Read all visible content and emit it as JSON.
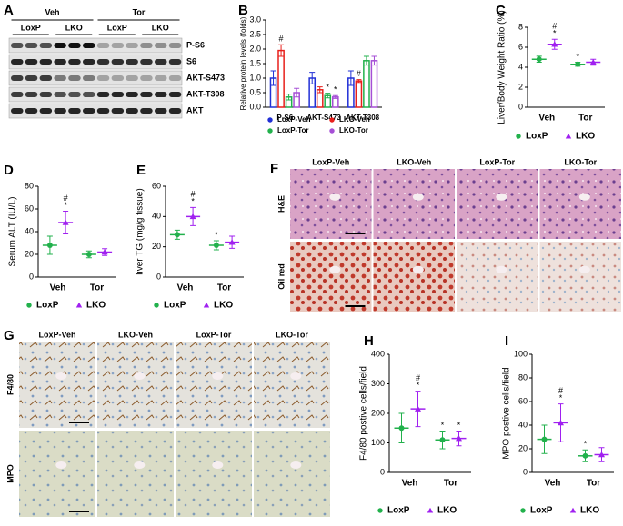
{
  "panel_labels": [
    "A",
    "B",
    "C",
    "D",
    "E",
    "F",
    "G",
    "H",
    "I"
  ],
  "blot": {
    "groups": [
      "Veh",
      "Tor"
    ],
    "genotypes": [
      "LoxP",
      "LKO",
      "LoxP",
      "LKO"
    ],
    "bands": [
      "P-S6",
      "S6",
      "AKT-S473",
      "AKT-T308",
      "AKT"
    ]
  },
  "histology_F": {
    "columns": [
      "LoxP-Veh",
      "LKO-Veh",
      "LoxP-Tor",
      "LKO-Tor"
    ],
    "rows": [
      "H&E",
      "Oil red"
    ]
  },
  "histology_G": {
    "columns": [
      "LoxP-Veh",
      "LKO-Veh",
      "LoxP-Tor",
      "LKO-Tor"
    ],
    "rows": [
      "F4/80",
      "MPO"
    ]
  },
  "chart_data": [
    {
      "type": "bar",
      "ylabel": "Relative protein levels (folds)",
      "categories": [
        "P-S6",
        "AKT-S473",
        "AKT-T308"
      ],
      "ylim": [
        0,
        3
      ],
      "yticks": [
        {
          "value": 0,
          "label": "0.0"
        },
        {
          "value": 0.5,
          "label": "0.5"
        },
        {
          "value": 1,
          "label": "1.0"
        },
        {
          "value": 1.5,
          "label": "1.5"
        },
        {
          "value": 2,
          "label": "2.0"
        },
        {
          "value": 2.5,
          "label": "2.5"
        },
        {
          "value": 3,
          "label": "3.0"
        }
      ],
      "series": [
        {
          "name": "LoxP-Veh",
          "color": "#2130d6",
          "marker": "circle",
          "values": [
            1.0,
            1.0,
            1.0
          ],
          "errors": [
            0.25,
            0.2,
            0.25
          ],
          "annotations": [
            null,
            null,
            null
          ]
        },
        {
          "name": "LKO-Veh",
          "color": "#e8201c",
          "marker": "circle",
          "values": [
            1.95,
            0.6,
            0.9
          ],
          "errors": [
            0.2,
            0.1,
            0.05
          ],
          "annotations": [
            [
              "#"
            ],
            null,
            [
              "#"
            ]
          ]
        },
        {
          "name": "LoxP-Tor",
          "color": "#22b14c",
          "marker": "circle",
          "values": [
            0.35,
            0.4,
            1.6
          ],
          "errors": [
            0.1,
            0.08,
            0.15
          ],
          "annotations": [
            null,
            [
              "*"
            ],
            null
          ]
        },
        {
          "name": "LKO-Tor",
          "color": "#a64fd6",
          "marker": "circle",
          "values": [
            0.5,
            0.35,
            1.6
          ],
          "errors": [
            0.15,
            0.05,
            0.15
          ],
          "annotations": [
            null,
            [
              "*"
            ],
            null
          ]
        }
      ]
    },
    {
      "type": "dot",
      "ylabel": "Liver/Body Weight Ratio (%)",
      "categories": [
        "Veh",
        "Tor"
      ],
      "ylim": [
        0,
        8
      ],
      "yticks": [
        0,
        2,
        4,
        6,
        8
      ],
      "series": [
        {
          "name": "LoxP",
          "color": "#22b14c",
          "marker": "circle",
          "values": [
            4.8,
            4.3
          ],
          "errors": [
            0.3,
            0.2
          ],
          "annotations": [
            null,
            [
              "*"
            ]
          ]
        },
        {
          "name": "LKO",
          "color": "#a020f0",
          "marker": "triangle",
          "values": [
            6.3,
            4.5
          ],
          "errors": [
            0.5,
            0.3
          ],
          "annotations": [
            [
              "#",
              "*"
            ],
            null
          ]
        }
      ]
    },
    {
      "type": "dot",
      "ylabel": "Serum ALT (IU/L)",
      "categories": [
        "Veh",
        "Tor"
      ],
      "ylim": [
        0,
        80
      ],
      "yticks": [
        0,
        20,
        40,
        60,
        80
      ],
      "series": [
        {
          "name": "LoxP",
          "color": "#22b14c",
          "marker": "circle",
          "values": [
            28,
            20
          ],
          "errors": [
            8,
            3
          ],
          "annotations": [
            null,
            null
          ]
        },
        {
          "name": "LKO",
          "color": "#a020f0",
          "marker": "triangle",
          "values": [
            48,
            22
          ],
          "errors": [
            10,
            3
          ],
          "annotations": [
            [
              "#",
              "*"
            ],
            null
          ]
        }
      ]
    },
    {
      "type": "dot",
      "ylabel": "liver TG (mg/g tissue)",
      "categories": [
        "Veh",
        "Tor"
      ],
      "ylim": [
        0,
        60
      ],
      "yticks": [
        0,
        20,
        40,
        60
      ],
      "series": [
        {
          "name": "LoxP",
          "color": "#22b14c",
          "marker": "circle",
          "values": [
            28,
            21
          ],
          "errors": [
            3,
            3
          ],
          "annotations": [
            null,
            [
              "*"
            ]
          ]
        },
        {
          "name": "LKO",
          "color": "#a020f0",
          "marker": "triangle",
          "values": [
            40,
            23
          ],
          "errors": [
            6,
            4
          ],
          "annotations": [
            [
              "#",
              "*"
            ],
            null
          ]
        }
      ]
    },
    {
      "type": "dot",
      "ylabel": "F4/80 postive cells/field",
      "categories": [
        "Veh",
        "Tor"
      ],
      "ylim": [
        0,
        400
      ],
      "yticks": [
        0,
        100,
        200,
        300,
        400
      ],
      "series": [
        {
          "name": "LoxP",
          "color": "#22b14c",
          "marker": "circle",
          "values": [
            150,
            110
          ],
          "errors": [
            50,
            30
          ],
          "annotations": [
            null,
            [
              "*"
            ]
          ]
        },
        {
          "name": "LKO",
          "color": "#a020f0",
          "marker": "triangle",
          "values": [
            215,
            115
          ],
          "errors": [
            60,
            25
          ],
          "annotations": [
            [
              "#",
              "*"
            ],
            [
              "*"
            ]
          ]
        }
      ]
    },
    {
      "type": "dot",
      "ylabel": "MPO postive cells/field",
      "categories": [
        "Veh",
        "Tor"
      ],
      "ylim": [
        0,
        100
      ],
      "yticks": [
        0,
        20,
        40,
        60,
        80,
        100
      ],
      "series": [
        {
          "name": "LoxP",
          "color": "#22b14c",
          "marker": "circle",
          "values": [
            28,
            14
          ],
          "errors": [
            12,
            5
          ],
          "annotations": [
            null,
            [
              "*"
            ]
          ]
        },
        {
          "name": "LKO",
          "color": "#a020f0",
          "marker": "triangle",
          "values": [
            42,
            15
          ],
          "errors": [
            16,
            6
          ],
          "annotations": [
            [
              "#",
              "*"
            ],
            null
          ]
        }
      ]
    }
  ]
}
